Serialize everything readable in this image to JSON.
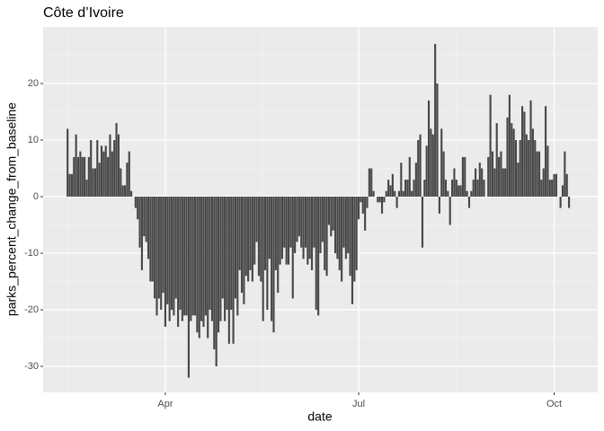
{
  "chart_data": {
    "type": "bar",
    "title": "Côte d’Ivoire",
    "x_label": "date",
    "y_label": "parks_percent_change_from_baseline",
    "color": "#474747",
    "grid": true,
    "categories": [
      null,
      null,
      null,
      null,
      null,
      null,
      null,
      null,
      null,
      null,
      null,
      null,
      null,
      null,
      null,
      null,
      null,
      null,
      null,
      null,
      null,
      null,
      null,
      null,
      null,
      null,
      null,
      null,
      null,
      null,
      null,
      null,
      null,
      null,
      null,
      null,
      null,
      null,
      null,
      null,
      null,
      null,
      null,
      null,
      null,
      null,
      null,
      null,
      null,
      null,
      null,
      null,
      null,
      null,
      null,
      null,
      null,
      null,
      null,
      null,
      null,
      null,
      null,
      null,
      null,
      null,
      null,
      null,
      null,
      null,
      null,
      null,
      null,
      null,
      null,
      null,
      null,
      null,
      null,
      null,
      null,
      null,
      null,
      null,
      null,
      null,
      null,
      null,
      null,
      null,
      null,
      null,
      null,
      null,
      null,
      null,
      null,
      null,
      null,
      null,
      null,
      null,
      null,
      null,
      null,
      null,
      null,
      null,
      null,
      null,
      null,
      null,
      null,
      null,
      null,
      null,
      null,
      null,
      null,
      null,
      null,
      null,
      null,
      null,
      null,
      null,
      null,
      null,
      null,
      null,
      null,
      null,
      null,
      null,
      null,
      null,
      null,
      null,
      null,
      null,
      null,
      null,
      null,
      null,
      null,
      null,
      null,
      null,
      null,
      null,
      null,
      null,
      null,
      null,
      null,
      null,
      null,
      null,
      null,
      null,
      null,
      null,
      null,
      null,
      null,
      null,
      null,
      null,
      null,
      null,
      null,
      null,
      null,
      null,
      null,
      null,
      null,
      null,
      null,
      null,
      null,
      null,
      null,
      null,
      null,
      null,
      null,
      null,
      null,
      null,
      null,
      null,
      null,
      null,
      null,
      null,
      null,
      null,
      null,
      null,
      null,
      null,
      null,
      null,
      null,
      null,
      null,
      null,
      null,
      null,
      null,
      null,
      null,
      null,
      null,
      null,
      null,
      null,
      null,
      null,
      null,
      null,
      null,
      null,
      null,
      null,
      null,
      null,
      null,
      null,
      null,
      null,
      null,
      null,
      null,
      null,
      null
    ],
    "values": [
      12,
      4,
      4,
      7,
      11,
      7,
      8,
      7,
      7,
      3,
      7,
      10,
      5,
      5,
      10,
      6,
      9,
      8,
      9,
      7,
      11,
      8,
      10,
      13,
      11,
      5,
      2,
      2,
      6,
      8,
      1,
      0,
      -2,
      -4,
      -9,
      -13,
      -7,
      -8,
      -11,
      -15,
      -15,
      -18,
      -21,
      -18,
      -20,
      -17,
      -23,
      -19,
      -22,
      -20,
      -21,
      -18,
      -23,
      -20,
      -22,
      -21,
      -21,
      -32,
      -22,
      -21,
      -21,
      -24,
      -25,
      -22,
      -23,
      -21,
      -25,
      -20,
      -22,
      -27,
      -30,
      -24,
      -22,
      -18,
      -22,
      -20,
      -26,
      -20,
      -26,
      -18,
      -21,
      -13,
      -17,
      -19,
      -14,
      -15,
      -13,
      -15,
      -12,
      -8,
      -14,
      -15,
      -22,
      -13,
      -20,
      -11,
      -22,
      -24,
      -13,
      -17,
      -12,
      -11,
      -9,
      -12,
      -12,
      -9,
      -18,
      -10,
      -8,
      -7,
      -9,
      -11,
      -9,
      -12,
      -11,
      -13,
      -9,
      -20,
      -21,
      -10,
      -8,
      -13,
      -14,
      -5,
      -7,
      -6,
      -10,
      -11,
      -13,
      -15,
      -9,
      -11,
      -10,
      -14,
      -19,
      -15,
      -13,
      -4,
      -1,
      -3,
      -6,
      -2,
      5,
      5,
      1,
      0,
      -1,
      -1,
      -3,
      -1,
      1,
      3,
      2,
      4,
      1,
      -2,
      1,
      6,
      1,
      3,
      3,
      7,
      1,
      3,
      6,
      10,
      11,
      -9,
      3,
      9,
      17,
      12,
      11,
      27,
      20,
      -3,
      12,
      8,
      3,
      1,
      -5,
      3,
      5,
      3,
      2,
      2,
      7,
      7,
      1,
      -2,
      1,
      3,
      5,
      3,
      6,
      5,
      3,
      0,
      7,
      18,
      8,
      5,
      13,
      7,
      8,
      5,
      5,
      14,
      18,
      13,
      12,
      10,
      6,
      10,
      16,
      15,
      11,
      10,
      17,
      12,
      10,
      8,
      8,
      3,
      5,
      16,
      9,
      3,
      3,
      4,
      4,
      0,
      -2,
      2,
      8,
      4,
      -2
    ],
    "xlim": [
      -11.5,
      249.5
    ],
    "xticks": [
      {
        "value": 46,
        "label": "Apr"
      },
      {
        "value": 137,
        "label": "Jul"
      },
      {
        "value": 229,
        "label": "Oct"
      }
    ],
    "ylim": [
      -34.6,
      30
    ],
    "yticks": [
      -30,
      -20,
      -10,
      0,
      10,
      20
    ]
  }
}
